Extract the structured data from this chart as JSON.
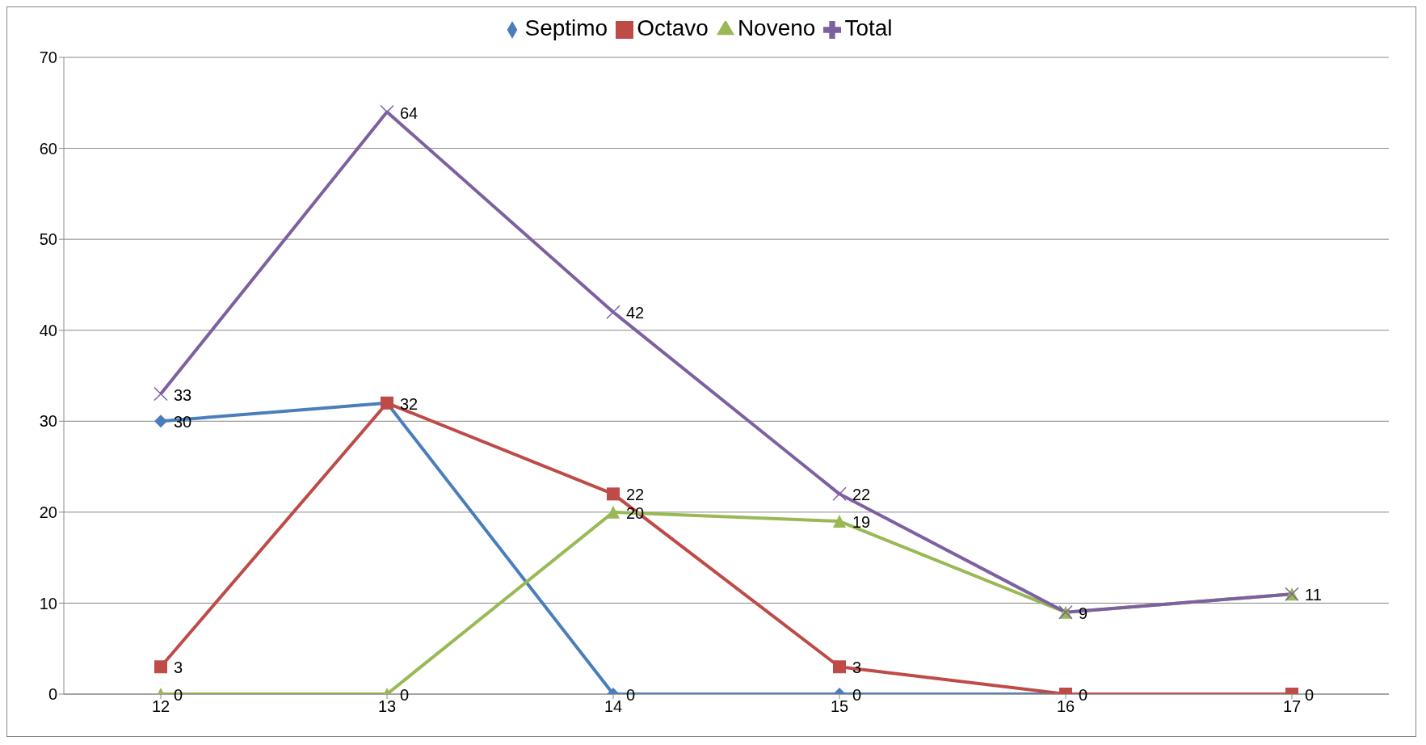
{
  "chart_data": {
    "type": "line",
    "categories": [
      "12",
      "13",
      "14",
      "15",
      "16",
      "17"
    ],
    "series": [
      {
        "name": "Septimo",
        "color": "#4a7ebb",
        "marker": "diamond",
        "values": [
          30,
          32,
          0,
          0,
          0,
          0
        ],
        "value_labels": [
          "30",
          "32",
          "0",
          "0",
          "0",
          "0"
        ]
      },
      {
        "name": "Octavo",
        "color": "#be4b48",
        "marker": "square",
        "values": [
          3,
          32,
          22,
          3,
          0,
          0
        ],
        "value_labels": [
          "3",
          null,
          "22",
          "3",
          null,
          null
        ]
      },
      {
        "name": "Noveno",
        "color": "#98b954",
        "marker": "triangle",
        "values": [
          0,
          0,
          20,
          19,
          9,
          11
        ],
        "value_labels": [
          "0",
          "0",
          "20",
          "19",
          "9",
          "11"
        ]
      },
      {
        "name": "Total",
        "color": "#7d60a0",
        "marker": "cross",
        "values": [
          33,
          64,
          42,
          22,
          9,
          11
        ],
        "value_labels": [
          "33",
          "64",
          "42",
          "22",
          null,
          null
        ]
      }
    ],
    "ylim": [
      0,
      70
    ],
    "yticks": [
      0,
      10,
      20,
      30,
      40,
      50,
      60,
      70
    ],
    "grid": "y",
    "legend": "top"
  }
}
